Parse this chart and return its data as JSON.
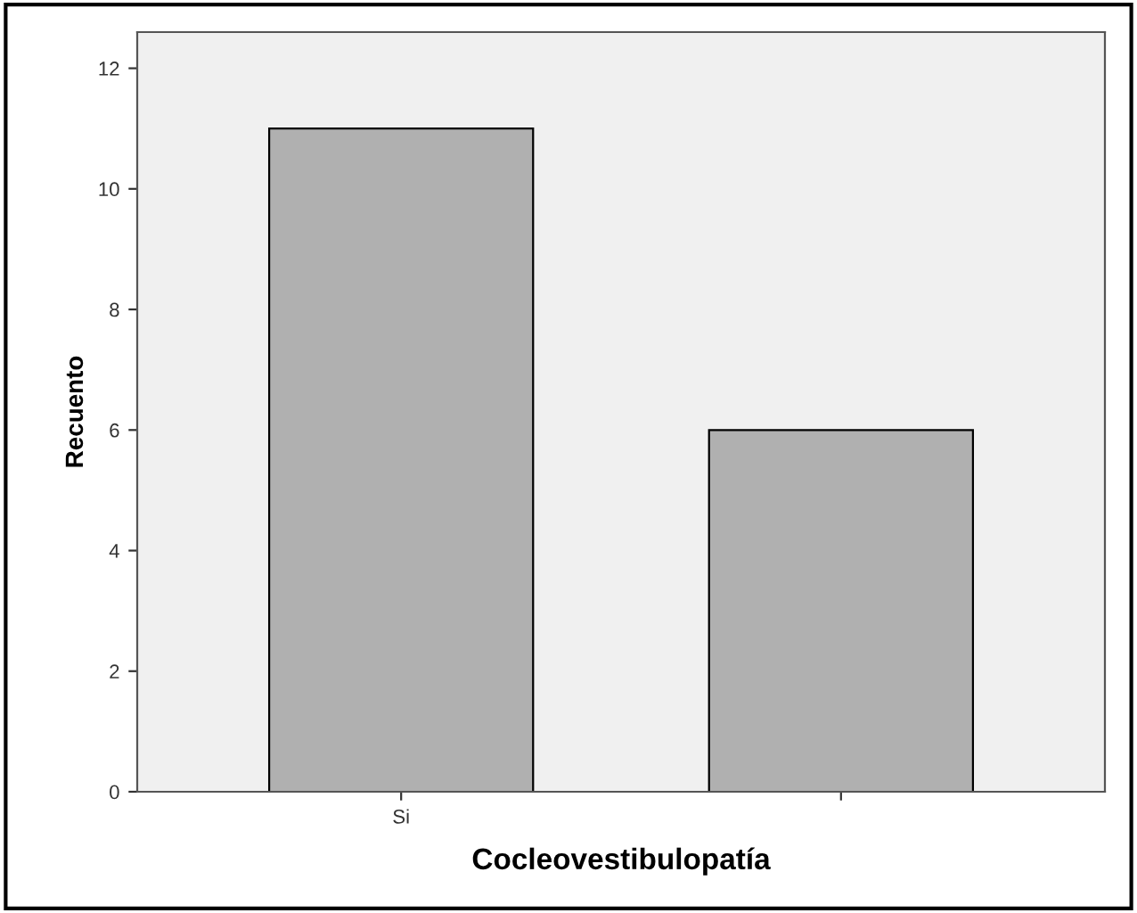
{
  "chart_data": {
    "type": "bar",
    "xlabel": "Cocleovestibulopatía",
    "ylabel": "Recuento",
    "categories": [
      "Si",
      null
    ],
    "values": [
      11,
      6
    ],
    "color": "#b0b0b0",
    "ylim": [
      0,
      12.6
    ],
    "yticks": [
      0,
      2,
      4,
      6,
      8,
      10,
      12
    ],
    "grid": false
  }
}
